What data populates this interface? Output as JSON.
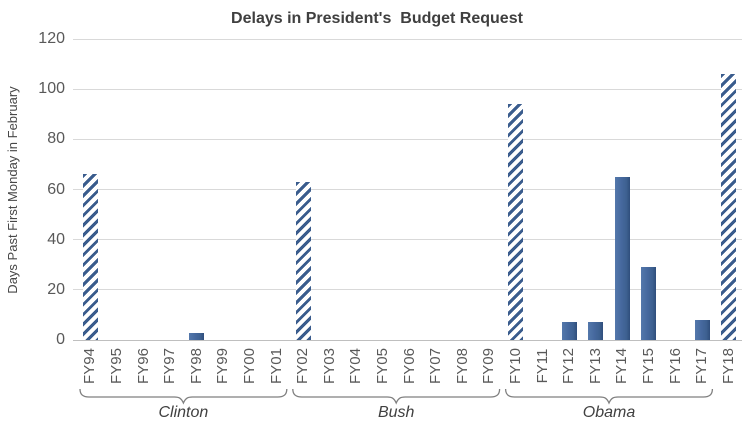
{
  "chart_data": {
    "type": "bar",
    "title": "Delays in President's  Budget Request",
    "ylabel": "Days Past First Monday in February",
    "xlabel": "",
    "ylim": [
      0,
      120
    ],
    "yticks": [
      0,
      20,
      40,
      60,
      80,
      100,
      120
    ],
    "grid": true,
    "legend_position": "none",
    "categories": [
      "FY94",
      "FY95",
      "FY96",
      "FY97",
      "FY98",
      "FY99",
      "FY00",
      "FY01",
      "FY02",
      "FY03",
      "FY04",
      "FY05",
      "FY06",
      "FY07",
      "FY08",
      "FY09",
      "FY10",
      "FY11",
      "FY12",
      "FY13",
      "FY14",
      "FY15",
      "FY16",
      "FY17",
      "FY18"
    ],
    "values": [
      66,
      0,
      0,
      0,
      3,
      0,
      0,
      0,
      63,
      0,
      0,
      0,
      0,
      0,
      0,
      0,
      94,
      0,
      7,
      7,
      65,
      29,
      0,
      8,
      106
    ],
    "hatched_categories": [
      "FY94",
      "FY02",
      "FY10",
      "FY18"
    ],
    "groups": [
      {
        "label": "Clinton",
        "from": "FY94",
        "to": "FY01"
      },
      {
        "label": "Bush",
        "from": "FY02",
        "to": "FY09"
      },
      {
        "label": "Obama",
        "from": "FY10",
        "to": "FY17"
      }
    ]
  },
  "colors": {
    "bar_solid": "#45689d",
    "bar_hatch_stripe": "#3a5c8d",
    "gridline": "#d9d9d9",
    "axis_line": "#bfbfbf",
    "tick_label": "#595959",
    "title_color": "#3f3f3f",
    "group_label_color": "#404040",
    "brace": "#7f7f7f",
    "background": "#ffffff"
  }
}
